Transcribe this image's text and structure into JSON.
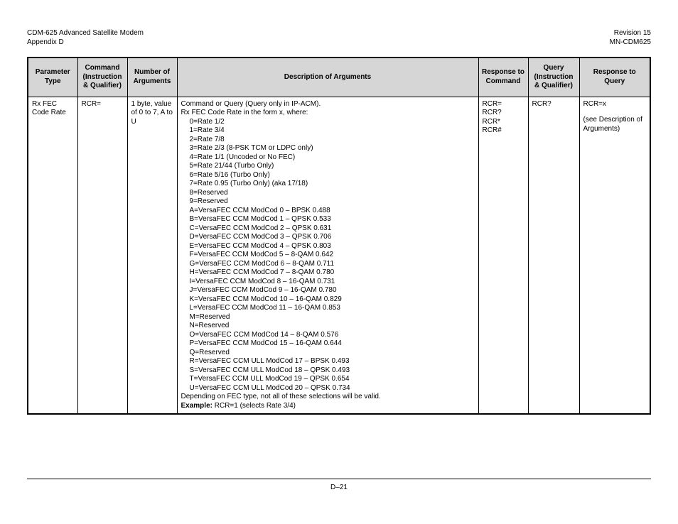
{
  "header": {
    "title_left_1": "CDM-625 Advanced Satellite Modem",
    "title_left_2": "Appendix D",
    "title_right_1": "Revision 15",
    "title_right_2": "MN-CDM625"
  },
  "table": {
    "columns": {
      "c1": "Parameter Type",
      "c2": "Command (Instruction & Qualifier)",
      "c3": "Number of Arguments",
      "c4": "Description of Arguments",
      "c5": "Response to Command",
      "c6": "Query (Instruction & Qualifier)",
      "c7": "Response to Query"
    },
    "row": {
      "param_type": "Rx FEC Code Rate",
      "command": "RCR=",
      "num_args": "1 byte, value of  0 to 7, A to U",
      "desc": {
        "head": "Command or Query (Query only in IP-ACM).",
        "intro": "Rx FEC Code Rate in the form x, where:",
        "lines": [
          "0=Rate 1/2",
          "1=Rate 3/4",
          "2=Rate 7/8",
          "3=Rate 2/3 (8-PSK TCM or LDPC only)",
          "4=Rate 1/1 (Uncoded or No FEC)",
          "5=Rate 21/44  (Turbo Only)",
          "6=Rate 5/16    (Turbo Only)",
          "7=Rate 0.95    (Turbo Only)  (aka 17/18)",
          "8=Reserved",
          "9=Reserved",
          "A=VersaFEC CCM ModCod 0 – BPSK 0.488",
          "B=VersaFEC CCM ModCod 1 – QPSK 0.533",
          "C=VersaFEC CCM ModCod 2 – QPSK 0.631",
          "D=VersaFEC CCM ModCod 3 – QPSK 0.706",
          "E=VersaFEC CCM ModCod 4 – QPSK 0.803",
          "F=VersaFEC CCM ModCod 5 – 8-QAM 0.642",
          "G=VersaFEC CCM ModCod 6 – 8-QAM 0.711",
          "H=VersaFEC CCM ModCod 7 – 8-QAM 0.780",
          "I=VersaFEC CCM ModCod 8 – 16-QAM 0.731",
          "J=VersaFEC CCM ModCod 9 – 16-QAM 0.780",
          "K=VersaFEC CCM ModCod 10 – 16-QAM 0.829",
          "L=VersaFEC CCM ModCod 11 – 16-QAM 0.853",
          "M=Reserved",
          "N=Reserved",
          "O=VersaFEC CCM ModCod 14 – 8-QAM 0.576",
          "P=VersaFEC CCM ModCod 15 – 16-QAM 0.644",
          "Q=Reserved",
          "R=VersaFEC CCM ULL ModCod 17 – BPSK 0.493",
          "S=VersaFEC CCM ULL ModCod 18 – QPSK 0.493",
          "T=VersaFEC CCM ULL ModCod 19 – QPSK 0.654",
          "U=VersaFEC CCM ULL ModCod 20 – QPSK 0.734"
        ],
        "note": "Depending on FEC type, not all of these selections will be valid.",
        "example_label": "Example:",
        "example_text": " RCR=1 (selects Rate 3/4)"
      },
      "resp_cmd": "RCR=\nRCR?\nRCR*\nRCR#",
      "query": "RCR?",
      "resp_query_1": "RCR=x",
      "resp_query_2": "(see Description of Arguments)"
    }
  },
  "footer": {
    "page_num": "D–21"
  },
  "colors": {
    "header_bg": "#d6d6d6",
    "border": "#000000",
    "text": "#000000",
    "page_bg": "#ffffff"
  }
}
